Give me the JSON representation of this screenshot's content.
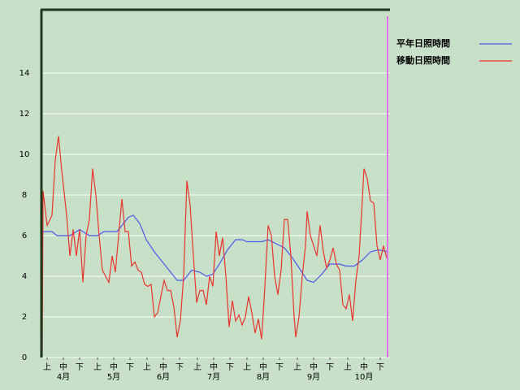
{
  "chart_data": {
    "type": "line",
    "xlim": [
      0,
      214
    ],
    "ylim": [
      0,
      17.12
    ],
    "yticks": [
      0,
      2,
      4,
      6,
      8,
      10,
      12,
      14
    ],
    "grid": true,
    "xticks": [
      {
        "value": 3,
        "label": "上"
      },
      {
        "value": 13,
        "label": "中"
      },
      {
        "value": 23,
        "label": "下"
      },
      {
        "value": 34,
        "label": "上"
      },
      {
        "value": 44,
        "label": "中"
      },
      {
        "value": 54,
        "label": "下"
      },
      {
        "value": 64.5,
        "label": "上"
      },
      {
        "value": 74.5,
        "label": "中"
      },
      {
        "value": 84.5,
        "label": "下"
      },
      {
        "value": 95.5,
        "label": "上"
      },
      {
        "value": 105.5,
        "label": "中"
      },
      {
        "value": 115.5,
        "label": "下"
      },
      {
        "value": 126,
        "label": "上"
      },
      {
        "value": 136,
        "label": "中"
      },
      {
        "value": 146,
        "label": "下"
      },
      {
        "value": 157,
        "label": "上"
      },
      {
        "value": 167,
        "label": "中"
      },
      {
        "value": 177,
        "label": "下"
      },
      {
        "value": 188,
        "label": "上"
      },
      {
        "value": 198,
        "label": "中"
      },
      {
        "value": 208,
        "label": "下"
      }
    ],
    "month_labels": [
      {
        "value": 13,
        "label": "4月"
      },
      {
        "value": 44,
        "label": "5月"
      },
      {
        "value": 74.5,
        "label": "6月"
      },
      {
        "value": 105.5,
        "label": "7月"
      },
      {
        "value": 136,
        "label": "8月"
      },
      {
        "value": 167,
        "label": "9月"
      },
      {
        "value": 198,
        "label": "10月"
      }
    ],
    "series": [
      {
        "name": "平年日照時間",
        "color": "#4a5ae8",
        "x": [
          0,
          6,
          9,
          17,
          23,
          29,
          34,
          38,
          46,
          49,
          53,
          56,
          60,
          64,
          69,
          74,
          79,
          83,
          87,
          92,
          97,
          101,
          105,
          109,
          114,
          119,
          123,
          126,
          135,
          139,
          144,
          149,
          154,
          159,
          163,
          167,
          172,
          177,
          183,
          187,
          192,
          197,
          202,
          207,
          213
        ],
        "values": [
          6.2,
          6.2,
          6.0,
          6.0,
          6.3,
          6.0,
          6.0,
          6.2,
          6.2,
          6.5,
          6.9,
          7.0,
          6.6,
          5.8,
          5.2,
          4.7,
          4.2,
          3.8,
          3.8,
          4.3,
          4.2,
          4.0,
          4.1,
          4.6,
          5.3,
          5.8,
          5.8,
          5.7,
          5.7,
          5.8,
          5.6,
          5.4,
          4.9,
          4.3,
          3.8,
          3.7,
          4.1,
          4.6,
          4.6,
          4.5,
          4.5,
          4.8,
          5.2,
          5.3,
          5.2
        ]
      },
      {
        "name": "移動日照時間",
        "color": "#e8342c",
        "x": [
          0,
          0.5,
          3,
          6,
          8,
          10,
          12,
          15,
          17,
          19,
          21,
          23,
          25,
          27,
          29,
          31,
          33,
          35,
          37,
          39,
          41,
          43,
          45,
          47,
          49,
          51,
          53,
          55,
          57,
          59,
          61,
          63,
          65,
          67,
          69,
          71,
          73,
          75,
          77,
          79,
          81,
          83,
          85,
          87,
          89,
          91,
          93,
          95,
          97,
          99,
          101,
          103,
          105,
          107,
          109,
          111,
          113,
          115,
          117,
          119,
          121,
          123,
          125,
          127,
          129,
          131,
          133,
          135,
          137,
          139,
          141,
          143,
          145,
          147,
          149,
          151,
          153,
          155,
          156,
          158,
          160,
          162,
          163,
          165,
          167,
          169,
          171,
          173,
          175,
          177,
          179,
          181,
          183,
          185,
          187,
          189,
          191,
          193,
          195,
          197,
          198,
          200,
          202,
          204,
          206,
          208,
          210,
          212
        ],
        "values": [
          0,
          8.2,
          6.5,
          7.0,
          9.7,
          10.9,
          9.2,
          7.0,
          5.0,
          6.3,
          5.0,
          6.3,
          3.7,
          6.0,
          6.8,
          9.3,
          8.0,
          6.0,
          4.3,
          4.0,
          3.7,
          5.0,
          4.2,
          6.0,
          7.8,
          6.2,
          6.2,
          4.5,
          4.7,
          4.3,
          4.2,
          3.6,
          3.5,
          3.6,
          2.0,
          2.2,
          3.0,
          3.8,
          3.3,
          3.3,
          2.5,
          1.0,
          1.8,
          4.0,
          8.7,
          7.5,
          5.0,
          2.7,
          3.3,
          3.3,
          2.6,
          4.0,
          3.5,
          6.2,
          5.0,
          5.9,
          4.0,
          1.5,
          2.8,
          1.8,
          2.1,
          1.6,
          2.0,
          3.0,
          2.2,
          1.2,
          1.9,
          0.9,
          3.5,
          6.5,
          6.0,
          4.0,
          3.1,
          4.3,
          6.8,
          6.8,
          5.0,
          2.0,
          1.0,
          2.0,
          4.0,
          5.5,
          7.2,
          6.0,
          5.5,
          5.0,
          6.5,
          5.2,
          4.4,
          4.8,
          5.4,
          4.6,
          4.3,
          2.6,
          2.4,
          3.1,
          1.8,
          3.8,
          5.0,
          7.8,
          9.3,
          8.8,
          7.7,
          7.6,
          5.5,
          4.8,
          5.5,
          4.9
        ]
      }
    ]
  }
}
